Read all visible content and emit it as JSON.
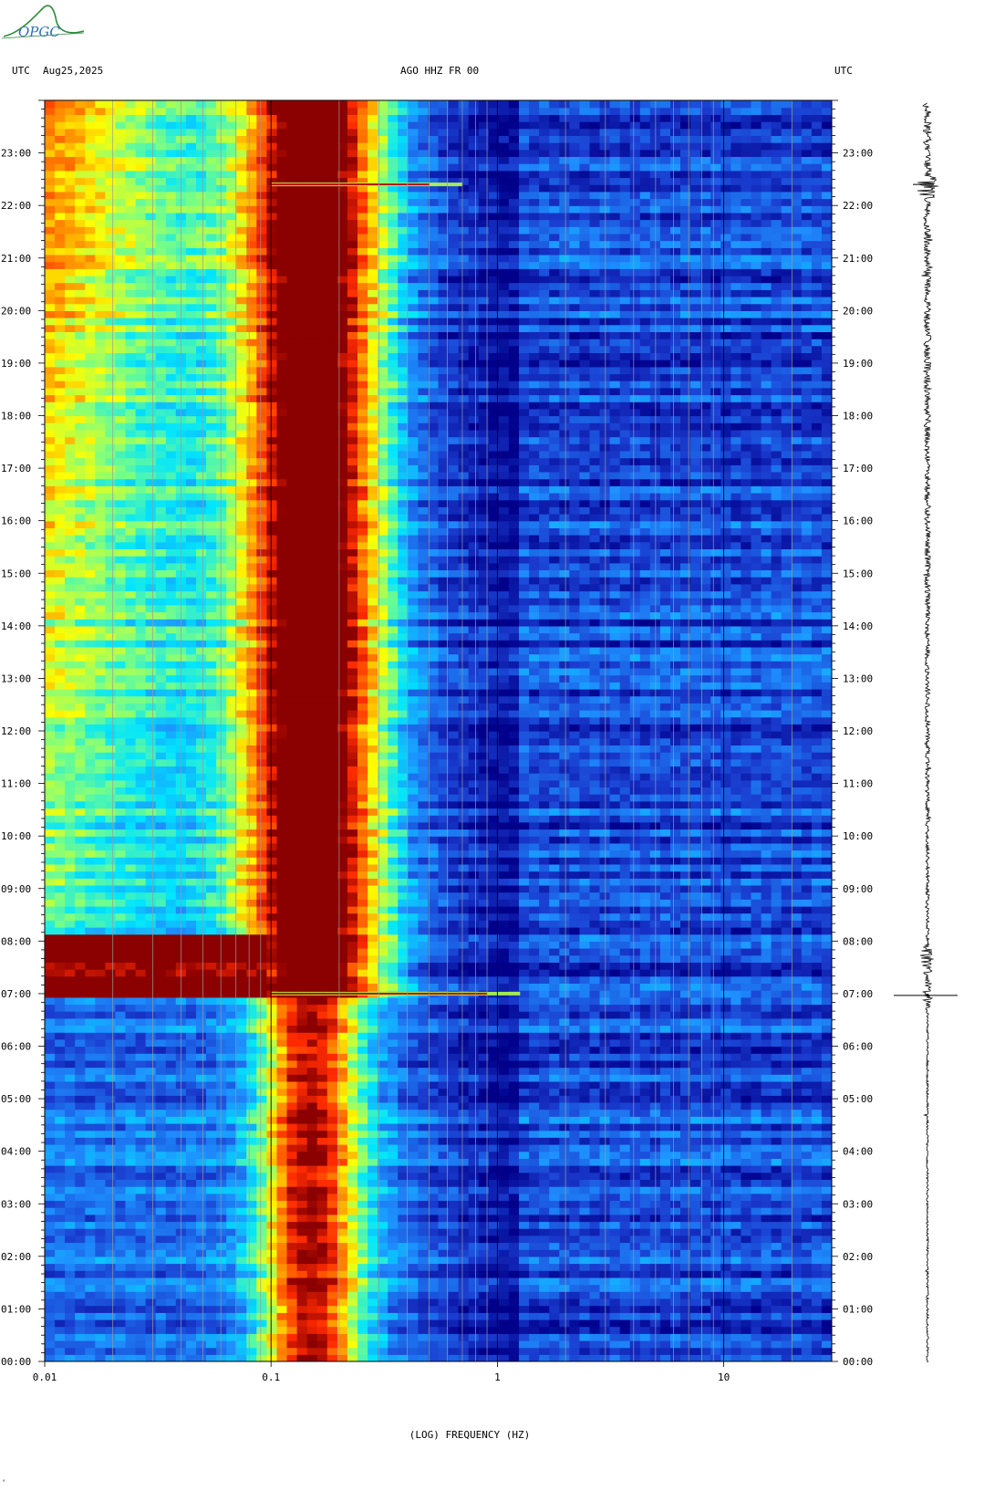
{
  "header": {
    "left_tz": "UTC",
    "date": "Aug25,2025",
    "station": "AGO HHZ FR 00",
    "right_tz": "UTC"
  },
  "logo": {
    "text": "OPGC",
    "color": "#2e8b3c"
  },
  "footer_mark": "ᵃ",
  "chart_data": {
    "type": "heatmap",
    "title": "AGO HHZ FR 00",
    "xlabel": "(LOG) FREQUENCY (HZ)",
    "ylabel": "UTC",
    "x_scale": "log",
    "xlim": [
      0.01,
      30
    ],
    "x_ticks": [
      0.01,
      0.1,
      1,
      10
    ],
    "x_tick_labels": [
      "0.01",
      "0.1",
      "1",
      "10"
    ],
    "ylim": [
      0,
      24
    ],
    "y_ticks": [
      0,
      1,
      2,
      3,
      4,
      5,
      6,
      7,
      8,
      9,
      10,
      11,
      12,
      13,
      14,
      15,
      16,
      17,
      18,
      19,
      20,
      21,
      22,
      23
    ],
    "y_tick_labels": [
      "00:00",
      "01:00",
      "02:00",
      "03:00",
      "04:00",
      "05:00",
      "06:00",
      "07:00",
      "08:00",
      "09:00",
      "10:00",
      "11:00",
      "12:00",
      "13:00",
      "14:00",
      "15:00",
      "16:00",
      "17:00",
      "18:00",
      "19:00",
      "20:00",
      "21:00",
      "22:00",
      "23:00"
    ],
    "colormap": [
      "#00008b",
      "#1a3ccf",
      "#1e90ff",
      "#00e5ff",
      "#7fff7f",
      "#ffff00",
      "#ff8c00",
      "#ff2a00",
      "#8b0000"
    ],
    "gridline_frequencies": [
      0.02,
      0.03,
      0.04,
      0.05,
      0.06,
      0.07,
      0.08,
      0.09,
      0.1,
      0.2,
      0.3,
      0.4,
      0.5,
      0.6,
      0.7,
      0.8,
      0.9,
      1,
      2,
      3,
      4,
      5,
      6,
      7,
      8,
      9,
      10,
      20
    ],
    "events": [
      {
        "time_utc": "07:00",
        "peak_frequency_hz": 0.9,
        "note": ""
      },
      {
        "time_utc": "22:24",
        "peak_frequency_hz": 0.5,
        "note": ""
      }
    ],
    "seismogram": {
      "event_times_utc": [
        "06:58",
        "07:40",
        "22:24"
      ]
    }
  }
}
